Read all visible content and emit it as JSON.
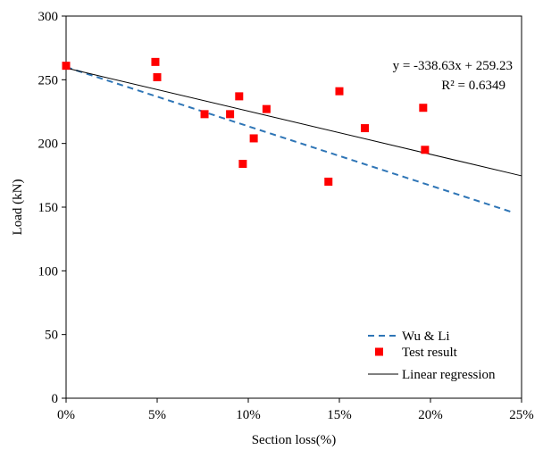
{
  "chart_data": {
    "type": "scatter",
    "xlabel": "Section loss(%)",
    "ylabel": "Load (kN)",
    "xlim": [
      0,
      0.25
    ],
    "ylim": [
      0,
      300
    ],
    "x_ticks": [
      0,
      0.05,
      0.1,
      0.15,
      0.2,
      0.25
    ],
    "x_tick_labels": [
      "0%",
      "5%",
      "10%",
      "15%",
      "20%",
      "25%"
    ],
    "y_ticks": [
      0,
      50,
      100,
      150,
      200,
      250,
      300
    ],
    "y_tick_labels": [
      "0",
      "50",
      "100",
      "150",
      "200",
      "250",
      "300"
    ],
    "grid": false,
    "legend_position": "bottom-right",
    "series": [
      {
        "name": "Wu & Li",
        "kind": "line",
        "style": "dashed",
        "color": "#2E75B6",
        "x": [
          0,
          0.245
        ],
        "y": [
          260,
          146
        ]
      },
      {
        "name": "Test result",
        "kind": "scatter",
        "color": "#FF0000",
        "x": [
          0.0,
          0.049,
          0.05,
          0.076,
          0.09,
          0.095,
          0.097,
          0.103,
          0.11,
          0.144,
          0.15,
          0.164,
          0.196,
          0.197
        ],
        "y": [
          261,
          264,
          252,
          223,
          223,
          237,
          184,
          204,
          227,
          170,
          241,
          212,
          228,
          195
        ]
      },
      {
        "name": "Linear regression",
        "kind": "line",
        "style": "solid",
        "color": "#000000",
        "x": [
          0,
          0.25
        ],
        "y": [
          259.23,
          174.57
        ]
      }
    ],
    "annotations": {
      "equation": "y = -338.63x + 259.23",
      "r_squared": "R² = 0.6349"
    }
  }
}
